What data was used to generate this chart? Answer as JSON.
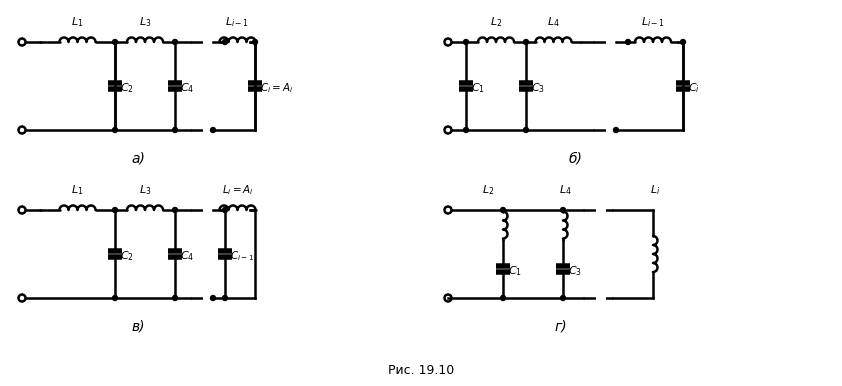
{
  "fig_width": 8.42,
  "fig_height": 3.86,
  "dpi": 100,
  "bg_color": "#ffffff",
  "line_color": "#000000",
  "line_width": 1.8,
  "caption": "Рис. 19.10",
  "caption_fontsize": 9,
  "labels": {
    "a": "а)",
    "b": "б)",
    "v": "в)",
    "g": "г)"
  }
}
